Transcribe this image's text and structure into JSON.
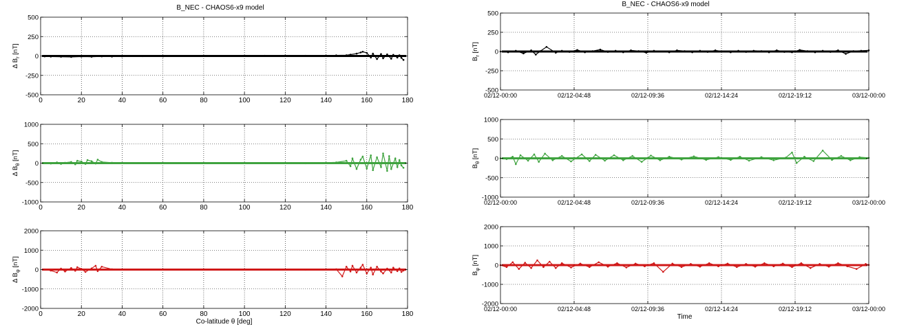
{
  "left_title": "B_NEC - CHAOS6-x9 model",
  "right_title": "B_NEC - CHAOS6-x9 model",
  "chart_data": [
    {
      "type": "scatter",
      "panel": "left-1",
      "color": "#000000",
      "xlim": [
        0,
        180
      ],
      "ylim": [
        -500,
        500
      ],
      "xticks": [
        "0",
        "20",
        "40",
        "60",
        "80",
        "100",
        "120",
        "140",
        "160",
        "180"
      ],
      "yticks": [
        "500",
        "250",
        "0",
        "-250",
        "-500"
      ],
      "ylabel_main": "Δ B",
      "ylabel_sub": "r",
      "ylabel_unit": "[nT]",
      "xlabel": "",
      "grid": true,
      "series": [
        {
          "x": [
            2,
            5,
            10,
            15,
            20,
            25,
            30,
            35,
            40,
            50,
            60,
            70,
            80,
            90,
            100,
            110,
            120,
            130,
            140,
            145,
            150,
            152,
            155,
            157,
            158,
            160,
            162,
            163,
            165,
            167,
            168,
            170,
            172,
            173,
            175,
            176,
            177,
            178
          ],
          "y": [
            -5,
            -8,
            -10,
            -12,
            -8,
            -10,
            -5,
            -8,
            -5,
            -3,
            -5,
            -2,
            0,
            2,
            0,
            3,
            5,
            3,
            5,
            8,
            10,
            18,
            30,
            45,
            55,
            40,
            -20,
            30,
            -40,
            25,
            -30,
            20,
            -35,
            15,
            -20,
            10,
            -25,
            -50
          ]
        }
      ]
    },
    {
      "type": "scatter",
      "panel": "left-2",
      "color": "#3fa33f",
      "xlim": [
        0,
        180
      ],
      "ylim": [
        -1000,
        1000
      ],
      "xticks": [
        "0",
        "20",
        "40",
        "60",
        "80",
        "100",
        "120",
        "140",
        "160",
        "180"
      ],
      "yticks": [
        "1000",
        "500",
        "0",
        "-500",
        "-1000"
      ],
      "ylabel_main": "Δ B",
      "ylabel_sub": "θ",
      "ylabel_unit": "[nT]",
      "xlabel": "",
      "grid": true,
      "series": [
        {
          "x": [
            2,
            5,
            8,
            10,
            12,
            15,
            17,
            18,
            20,
            22,
            23,
            25,
            27,
            28,
            30,
            35,
            40,
            50,
            60,
            70,
            80,
            90,
            100,
            110,
            120,
            130,
            140,
            145,
            150,
            152,
            153,
            155,
            157,
            158,
            160,
            162,
            163,
            165,
            167,
            168,
            170,
            171,
            172,
            174,
            175,
            176,
            177,
            178
          ],
          "y": [
            0,
            -10,
            20,
            -20,
            10,
            30,
            -30,
            60,
            40,
            -20,
            80,
            50,
            -10,
            90,
            30,
            10,
            5,
            0,
            3,
            -2,
            0,
            2,
            -3,
            0,
            5,
            -5,
            10,
            20,
            60,
            -80,
            120,
            -150,
            90,
            170,
            -140,
            200,
            -180,
            150,
            -100,
            250,
            -200,
            180,
            -150,
            120,
            -100,
            80,
            -60,
            -120
          ]
        }
      ]
    },
    {
      "type": "scatter",
      "panel": "left-3",
      "color": "#d01818",
      "xlim": [
        0,
        180
      ],
      "ylim": [
        -2000,
        2000
      ],
      "xticks": [
        "0",
        "20",
        "40",
        "60",
        "80",
        "100",
        "120",
        "140",
        "160",
        "180"
      ],
      "yticks": [
        "2000",
        "1000",
        "0",
        "-1000",
        "-2000"
      ],
      "ylabel_main": "Δ B",
      "ylabel_sub": "φ",
      "ylabel_unit": "[nT]",
      "xlabel": "Co-latitude θ [deg]",
      "grid": true,
      "series": [
        {
          "x": [
            2,
            5,
            8,
            10,
            12,
            15,
            17,
            18,
            20,
            22,
            25,
            27,
            28,
            30,
            35,
            40,
            50,
            60,
            70,
            80,
            90,
            100,
            110,
            120,
            130,
            140,
            145,
            148,
            150,
            152,
            153,
            155,
            157,
            158,
            160,
            162,
            163,
            165,
            167,
            168,
            170,
            172,
            173,
            175,
            176,
            177,
            178
          ],
          "y": [
            0,
            -50,
            -150,
            50,
            -100,
            80,
            -60,
            120,
            40,
            -120,
            60,
            200,
            -80,
            150,
            20,
            10,
            0,
            5,
            -5,
            0,
            5,
            -5,
            0,
            10,
            -10,
            5,
            20,
            -350,
            150,
            -100,
            200,
            -150,
            100,
            250,
            -200,
            100,
            -250,
            150,
            -100,
            -200,
            50,
            -150,
            100,
            -80,
            60,
            -120,
            -50
          ]
        }
      ]
    },
    {
      "type": "scatter",
      "panel": "right-1",
      "color": "#000000",
      "xlim": [
        0,
        24
      ],
      "ylim": [
        -500,
        500
      ],
      "xticks": [
        "02/12-00:00",
        "02/12-04:48",
        "02/12-09:36",
        "02/12-14:24",
        "02/12-19:12",
        "03/12-00:00"
      ],
      "yticks": [
        "500",
        "250",
        "0",
        "-250",
        "-500"
      ],
      "ylabel_main": "B",
      "ylabel_sub": "r",
      "ylabel_unit": "[nT]",
      "xlabel": "",
      "grid": true,
      "series": [
        {
          "x": [
            0,
            0.5,
            1.0,
            1.5,
            2.0,
            2.3,
            2.6,
            3.0,
            3.6,
            4.0,
            4.5,
            5.0,
            5.5,
            6.0,
            6.5,
            7.0,
            7.5,
            8.0,
            8.5,
            9.0,
            9.5,
            10.0,
            10.5,
            11.0,
            11.5,
            12.0,
            12.5,
            13.0,
            13.5,
            14.0,
            14.5,
            15.0,
            15.5,
            16.0,
            16.5,
            17.0,
            17.5,
            18.0,
            18.5,
            19.0,
            19.5,
            20.0,
            20.5,
            21.0,
            21.5,
            22.0,
            22.5,
            23.0,
            23.5,
            24.0
          ],
          "y": [
            0,
            -10,
            10,
            -25,
            15,
            -40,
            5,
            60,
            -15,
            10,
            -5,
            20,
            -10,
            5,
            25,
            -5,
            10,
            -10,
            15,
            5,
            -15,
            10,
            0,
            -10,
            15,
            5,
            -10,
            10,
            -5,
            15,
            0,
            -10,
            10,
            -5,
            10,
            5,
            -10,
            15,
            -5,
            -10,
            20,
            5,
            -10,
            10,
            -5,
            15,
            -30,
            5,
            10,
            15
          ]
        }
      ]
    },
    {
      "type": "scatter",
      "panel": "right-2",
      "color": "#3fa33f",
      "xlim": [
        0,
        24
      ],
      "ylim": [
        -1000,
        1000
      ],
      "xticks": [
        "02/12-00:00",
        "02/12-04:48",
        "02/12-09:36",
        "02/12-14:24",
        "02/12-19:12",
        "03/12-00:00"
      ],
      "yticks": [
        "1000",
        "500",
        "0",
        "-500",
        "-1000"
      ],
      "ylabel_main": "B",
      "ylabel_sub": "θ",
      "ylabel_unit": "[nT]",
      "xlabel": "",
      "grid": true,
      "series": [
        {
          "x": [
            0,
            0.4,
            0.8,
            1.0,
            1.3,
            1.8,
            2.2,
            2.5,
            2.9,
            3.4,
            4.0,
            4.6,
            5.3,
            5.8,
            6.2,
            6.8,
            7.4,
            8.0,
            8.6,
            9.2,
            9.8,
            10.4,
            11.0,
            11.8,
            12.6,
            13.4,
            14.2,
            15.0,
            15.6,
            16.2,
            17.0,
            17.8,
            18.6,
            19.0,
            19.3,
            19.8,
            20.4,
            21.0,
            21.6,
            22.2,
            22.8,
            23.4,
            24.0
          ],
          "y": [
            0,
            -20,
            40,
            -150,
            80,
            -60,
            100,
            -90,
            120,
            -50,
            60,
            -80,
            100,
            -70,
            90,
            -60,
            80,
            -50,
            60,
            -90,
            70,
            -50,
            40,
            -30,
            50,
            -40,
            30,
            -40,
            40,
            -60,
            30,
            -50,
            20,
            150,
            -120,
            40,
            -70,
            200,
            -40,
            60,
            -50,
            30,
            10
          ]
        }
      ]
    },
    {
      "type": "scatter",
      "panel": "right-3",
      "color": "#d01818",
      "xlim": [
        0,
        24
      ],
      "ylim": [
        -2000,
        2000
      ],
      "xticks": [
        "02/12-00:00",
        "02/12-04:48",
        "02/12-09:36",
        "02/12-14:24",
        "02/12-19:12",
        "03/12-00:00"
      ],
      "yticks": [
        "2000",
        "1000",
        "0",
        "-1000",
        "-2000"
      ],
      "ylabel_main": "B",
      "ylabel_sub": "φ",
      "ylabel_unit": "[nT]",
      "xlabel": "Time",
      "grid": true,
      "series": [
        {
          "x": [
            0,
            0.4,
            0.8,
            1.2,
            1.6,
            2.0,
            2.4,
            2.8,
            3.2,
            3.6,
            4.0,
            4.6,
            5.2,
            5.8,
            6.4,
            7.0,
            7.6,
            8.2,
            8.8,
            9.4,
            10.0,
            10.6,
            11.2,
            11.8,
            12.4,
            13.0,
            13.6,
            14.2,
            14.8,
            15.4,
            16.0,
            16.6,
            17.2,
            17.8,
            18.4,
            19.0,
            19.6,
            20.2,
            20.8,
            21.4,
            22.0,
            22.6,
            23.2,
            23.8,
            24.0
          ],
          "y": [
            0,
            -100,
            150,
            -200,
            120,
            -150,
            250,
            -100,
            180,
            -150,
            100,
            -120,
            80,
            -100,
            150,
            -80,
            100,
            -120,
            80,
            -60,
            100,
            -350,
            80,
            -100,
            60,
            -80,
            100,
            -60,
            80,
            -100,
            60,
            -80,
            100,
            -60,
            80,
            -100,
            100,
            -150,
            60,
            -80,
            100,
            -60,
            -200,
            60,
            10
          ]
        }
      ]
    }
  ]
}
